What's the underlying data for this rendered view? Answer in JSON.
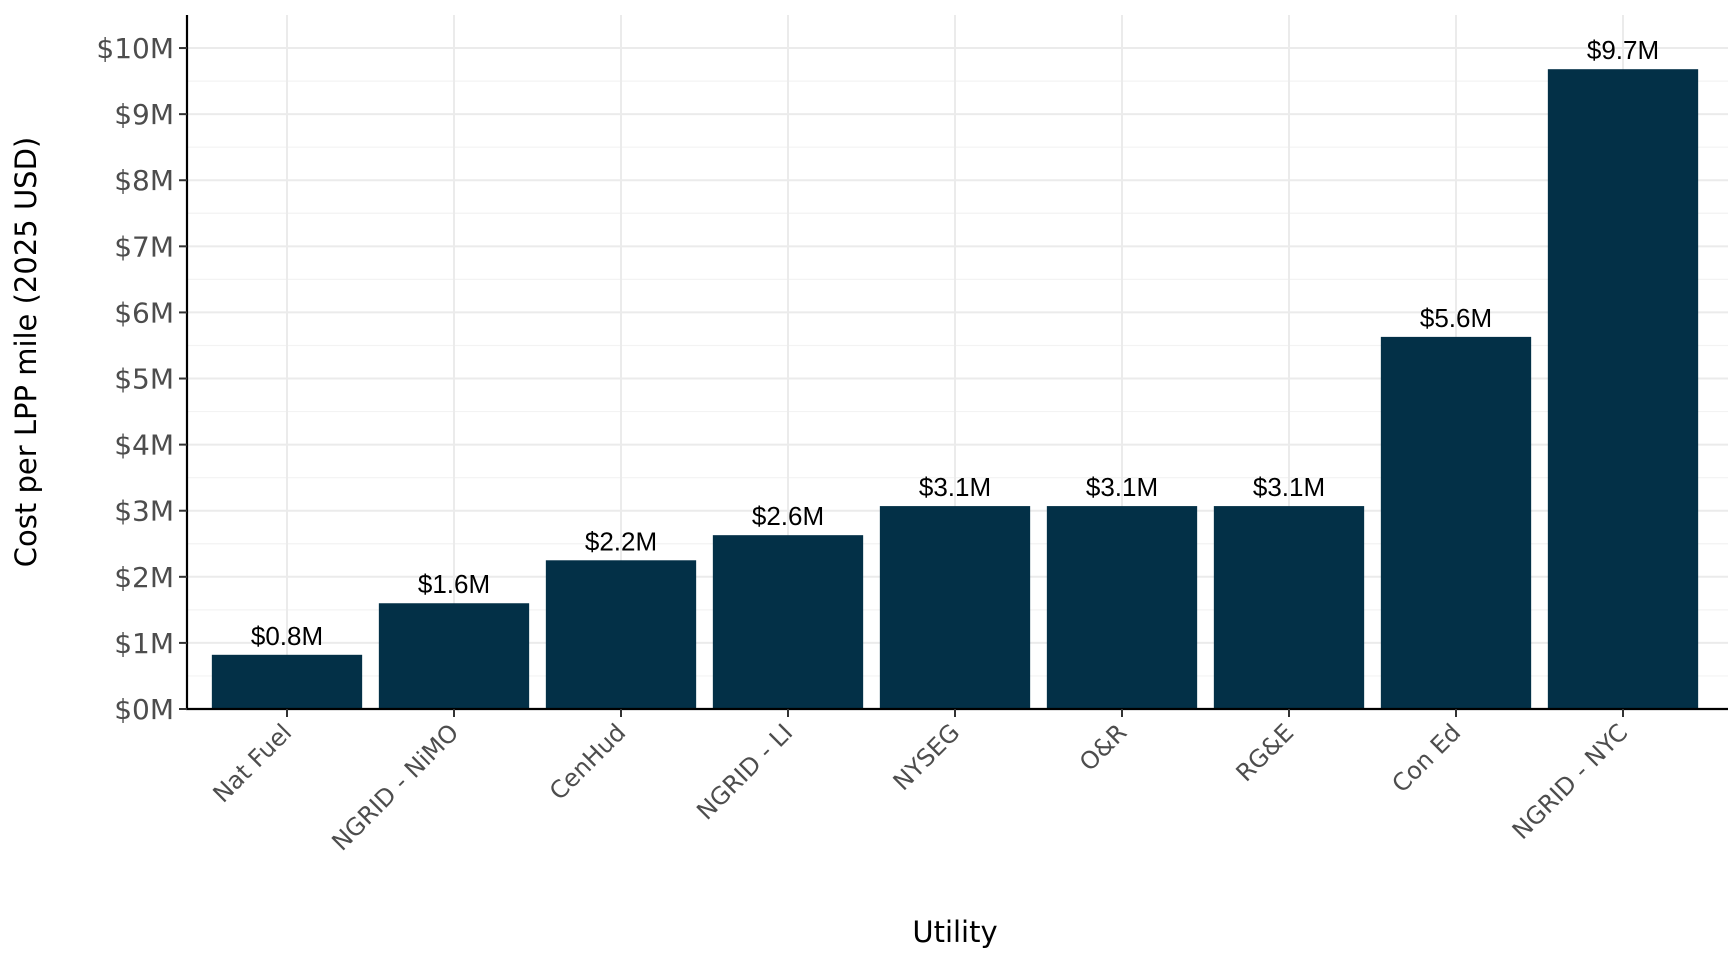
{
  "chart_data": {
    "type": "bar",
    "title": "",
    "xlabel": "Utility",
    "ylabel": "Cost per LPP mile (2025 USD)",
    "categories": [
      "Nat Fuel",
      "NGRID - NiMO",
      "CenHud",
      "NGRID - LI",
      "NYSEG",
      "O&R",
      "RG&E",
      "Con Ed",
      "NGRID - NYC"
    ],
    "values": [
      0.82,
      1.6,
      2.25,
      2.63,
      3.07,
      3.07,
      3.07,
      5.63,
      9.68
    ],
    "data_labels": [
      "$0.8M",
      "$1.6M",
      "$2.2M",
      "$2.6M",
      "$3.1M",
      "$3.1M",
      "$3.1M",
      "$5.6M",
      "$9.7M"
    ],
    "value_unit": "million USD",
    "ylim": [
      0,
      10.5
    ],
    "y_ticks": [
      0,
      1,
      2,
      3,
      4,
      5,
      6,
      7,
      8,
      9,
      10
    ],
    "y_tick_labels": [
      "$0M",
      "$1M",
      "$2M",
      "$3M",
      "$4M",
      "$5M",
      "$6M",
      "$7M",
      "$8M",
      "$9M",
      "$10M"
    ],
    "bar_color": "#033047",
    "grid": true,
    "legend": "none"
  }
}
